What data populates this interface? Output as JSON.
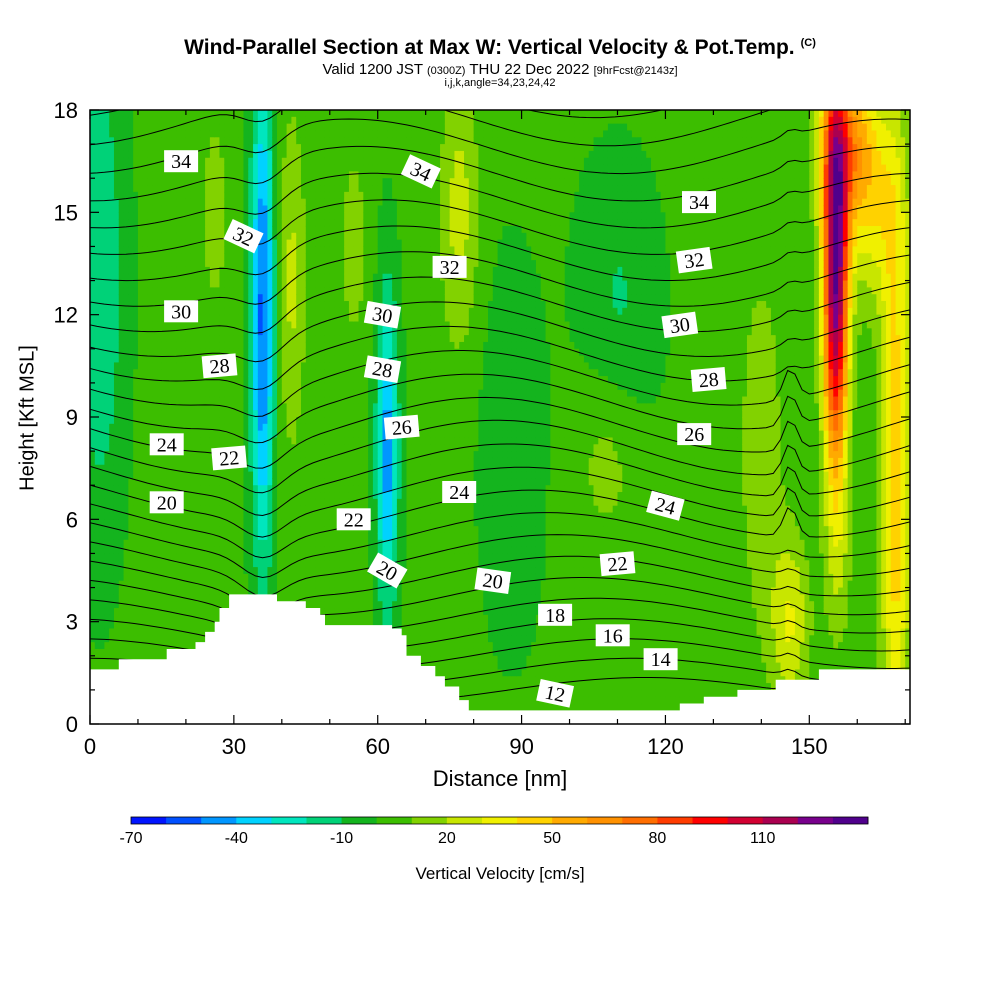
{
  "header": {
    "title": "Wind-Parallel Section at Max W: Vertical Velocity & Pot.Temp.",
    "title_mark": "(C)",
    "valid_prefix": "Valid 1200 JST",
    "valid_utc": "(0300Z)",
    "valid_date": "THU 22 Dec 2022",
    "forecast": "[9hrFcst@2143z]",
    "indices": "i,j,k,angle=34,23,24,42"
  },
  "chart_data": {
    "type": "heatmap",
    "title": "Wind-Parallel Section at Max W: Vertical Velocity & Pot.Temp.",
    "xlabel": "Distance [nm]",
    "ylabel": "Height [Kft MSL]",
    "xlim": [
      0,
      171
    ],
    "ylim": [
      0,
      18
    ],
    "x_ticks": [
      "0",
      "30",
      "60",
      "90",
      "120",
      "150"
    ],
    "y_ticks": [
      "0",
      "3",
      "6",
      "9",
      "12",
      "15",
      "18"
    ],
    "colorbar": {
      "label": "Vertical Velocity [cm/s]",
      "tick_labels": [
        "-70",
        "-40",
        "-10",
        "20",
        "50",
        "80",
        "110"
      ],
      "levels": [
        -70,
        -60,
        -50,
        -40,
        -30,
        -20,
        -10,
        0,
        10,
        20,
        30,
        40,
        50,
        60,
        70,
        80,
        90,
        100,
        110,
        120,
        130
      ],
      "colors": [
        "#0014ff",
        "#0050ff",
        "#0096ff",
        "#00d2ff",
        "#00e6be",
        "#00d278",
        "#14b41e",
        "#3cbe00",
        "#82d200",
        "#c8e600",
        "#f0f000",
        "#ffd200",
        "#ffaa00",
        "#ff9100",
        "#ff6e00",
        "#ff3c00",
        "#ff0000",
        "#d20032",
        "#aa0050",
        "#78008c",
        "#50008c"
      ]
    },
    "contour_labels": [
      {
        "text": "34",
        "x": 19,
        "y": 16.5,
        "angle": 0
      },
      {
        "text": "34",
        "x": 69,
        "y": 16.2,
        "angle": 25
      },
      {
        "text": "34",
        "x": 127,
        "y": 15.3,
        "angle": 0
      },
      {
        "text": "32",
        "x": 32,
        "y": 14.3,
        "angle": 25
      },
      {
        "text": "32",
        "x": 75,
        "y": 13.4,
        "angle": 0
      },
      {
        "text": "32",
        "x": 126,
        "y": 13.6,
        "angle": -8
      },
      {
        "text": "30",
        "x": 19,
        "y": 12.1,
        "angle": 0
      },
      {
        "text": "30",
        "x": 61,
        "y": 12.0,
        "angle": 10
      },
      {
        "text": "30",
        "x": 123,
        "y": 11.7,
        "angle": -8
      },
      {
        "text": "28",
        "x": 27,
        "y": 10.5,
        "angle": -5
      },
      {
        "text": "28",
        "x": 61,
        "y": 10.4,
        "angle": 10
      },
      {
        "text": "28",
        "x": 129,
        "y": 10.1,
        "angle": -5
      },
      {
        "text": "26",
        "x": 65,
        "y": 8.7,
        "angle": -5
      },
      {
        "text": "26",
        "x": 126,
        "y": 8.5,
        "angle": 0
      },
      {
        "text": "24",
        "x": 16,
        "y": 8.2,
        "angle": 0
      },
      {
        "text": "24",
        "x": 77,
        "y": 6.8,
        "angle": 0
      },
      {
        "text": "24",
        "x": 120,
        "y": 6.4,
        "angle": 15
      },
      {
        "text": "22",
        "x": 29,
        "y": 7.8,
        "angle": -5
      },
      {
        "text": "22",
        "x": 55,
        "y": 6.0,
        "angle": 0
      },
      {
        "text": "22",
        "x": 110,
        "y": 4.7,
        "angle": -5
      },
      {
        "text": "20",
        "x": 16,
        "y": 6.5,
        "angle": 0
      },
      {
        "text": "20",
        "x": 62,
        "y": 4.5,
        "angle": 30
      },
      {
        "text": "20",
        "x": 84,
        "y": 4.2,
        "angle": 8
      },
      {
        "text": "18",
        "x": 97,
        "y": 3.2,
        "angle": 0
      },
      {
        "text": "16",
        "x": 109,
        "y": 2.6,
        "angle": 0
      },
      {
        "text": "14",
        "x": 119,
        "y": 1.9,
        "angle": 0
      },
      {
        "text": "12",
        "x": 97,
        "y": 0.9,
        "angle": 12
      }
    ],
    "grid": false
  }
}
